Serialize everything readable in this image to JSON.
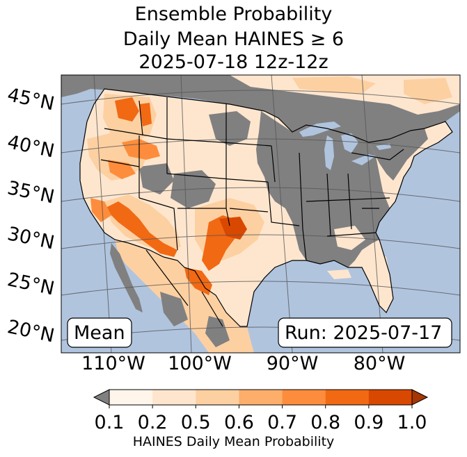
{
  "title": {
    "line1": "Ensemble Probability",
    "line2": "Daily Mean HAINES ≥ 6",
    "line3": "2025-07-18 12z-12z"
  },
  "latitude_labels": [
    "45°N",
    "40°N",
    "35°N",
    "30°N",
    "25°N",
    "20°N"
  ],
  "longitude_labels": [
    "110°W",
    "100°W",
    "90°W",
    "80°W"
  ],
  "mean_label": "Mean",
  "run_label": "Run: 2025-07-17",
  "colorbar": {
    "ticks": [
      "0.1",
      "0.2",
      "0.5",
      "0.6",
      "0.7",
      "0.8",
      "0.9",
      "1.0"
    ],
    "colors": [
      "#fff5eb",
      "#fee6ce",
      "#fdd0a2",
      "#fdae6b",
      "#fd8d3c",
      "#f16913",
      "#d94801"
    ],
    "under_color": "#808080",
    "over_color": "#a63603",
    "label": "HAINES Daily Mean Probability"
  },
  "colors": {
    "ocean": "#b0c4de",
    "below_threshold": "#808080",
    "lakes": "#b0c4de",
    "borders": "#000000",
    "gridlines": "#555555"
  }
}
